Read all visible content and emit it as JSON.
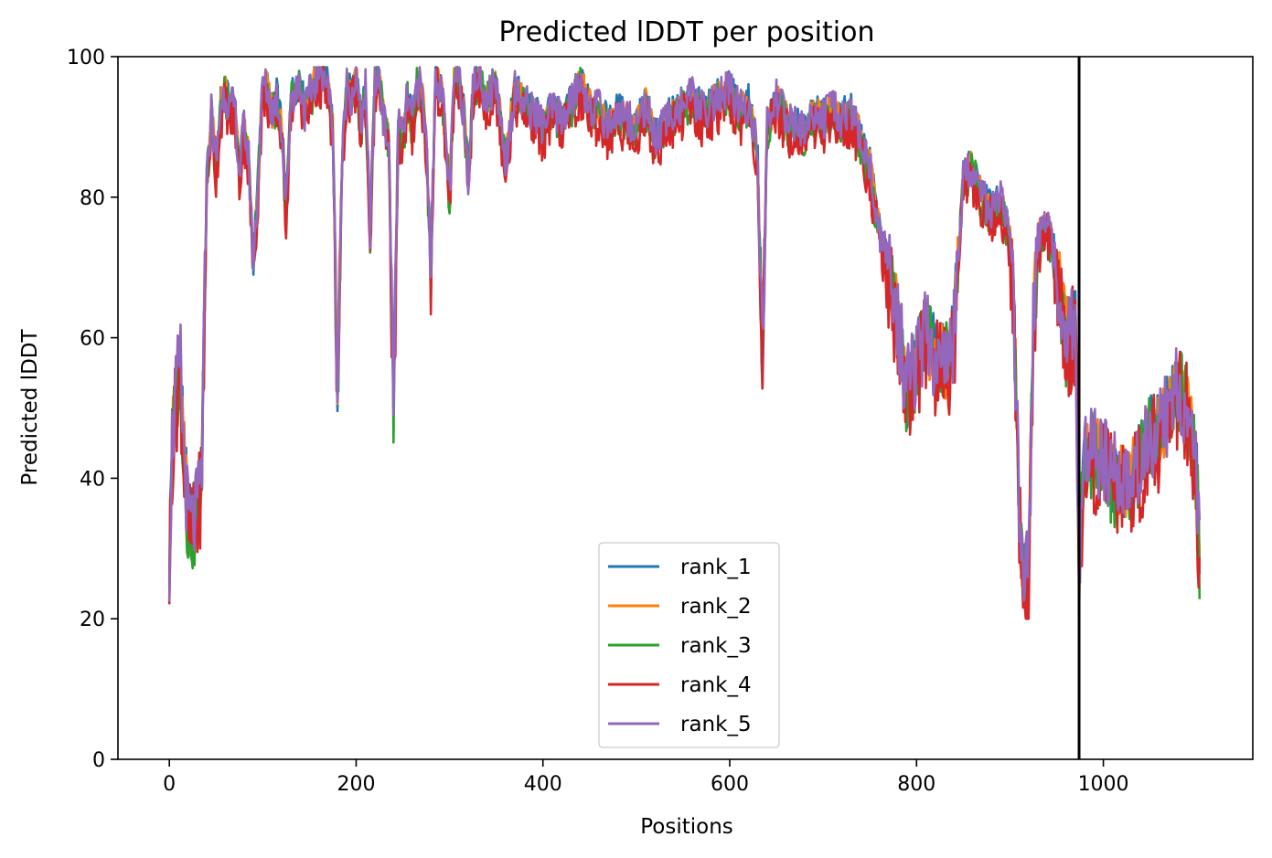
{
  "chart_data": {
    "type": "line",
    "title": "Predicted lDDT per position",
    "xlabel": "Positions",
    "ylabel": "Predicted lDDT",
    "xlim": [
      -55,
      1160
    ],
    "ylim": [
      0,
      100
    ],
    "xticks": [
      0,
      200,
      400,
      600,
      800,
      1000
    ],
    "yticks": [
      0,
      20,
      40,
      60,
      80,
      100
    ],
    "grid": false,
    "legend_position": "lower center",
    "vertical_line": {
      "x": 974,
      "color": "#000000"
    },
    "series": [
      {
        "name": "rank_1",
        "color": "#1f77b4",
        "offset": 0.6,
        "amp": 2.5
      },
      {
        "name": "rank_2",
        "color": "#ff7f0e",
        "offset": 0.2,
        "amp": 2.5
      },
      {
        "name": "rank_3",
        "color": "#2ca02c",
        "offset": -0.5,
        "amp": 3.0
      },
      {
        "name": "rank_4",
        "color": "#d62728",
        "offset": -1.5,
        "amp": 3.5
      },
      {
        "name": "rank_5",
        "color": "#9467bd",
        "offset": 0.3,
        "amp": 3.0
      }
    ],
    "base_profile": {
      "x": [
        0,
        3,
        8,
        12,
        15,
        20,
        25,
        30,
        35,
        40,
        45,
        50,
        55,
        60,
        65,
        70,
        75,
        80,
        85,
        90,
        95,
        100,
        105,
        110,
        115,
        120,
        125,
        130,
        135,
        140,
        145,
        150,
        155,
        160,
        165,
        170,
        175,
        180,
        185,
        190,
        195,
        200,
        205,
        210,
        215,
        220,
        225,
        230,
        235,
        240,
        245,
        250,
        255,
        260,
        265,
        270,
        275,
        280,
        285,
        290,
        295,
        300,
        305,
        310,
        315,
        320,
        325,
        330,
        340,
        350,
        360,
        370,
        380,
        390,
        400,
        410,
        420,
        430,
        440,
        450,
        460,
        470,
        480,
        490,
        500,
        510,
        520,
        530,
        540,
        550,
        560,
        570,
        580,
        590,
        600,
        610,
        620,
        625,
        630,
        635,
        640,
        650,
        660,
        670,
        680,
        690,
        700,
        710,
        720,
        730,
        740,
        750,
        760,
        770,
        780,
        790,
        800,
        810,
        820,
        830,
        840,
        850,
        860,
        870,
        880,
        890,
        900,
        905,
        910,
        915,
        920,
        925,
        930,
        940,
        950,
        960,
        970,
        974,
        980,
        990,
        1000,
        1010,
        1020,
        1030,
        1040,
        1050,
        1060,
        1070,
        1080,
        1090,
        1100,
        1103
      ],
      "y": [
        28,
        45,
        53,
        56,
        45,
        34,
        33,
        35,
        42,
        82,
        92,
        84,
        93,
        95,
        92,
        93,
        83,
        90,
        85,
        70,
        82,
        96,
        95,
        92,
        94,
        90,
        78,
        94,
        95,
        96,
        92,
        94,
        96,
        97,
        98,
        95,
        90,
        52,
        85,
        96,
        94,
        97,
        90,
        95,
        75,
        96,
        97,
        90,
        88,
        50,
        90,
        88,
        94,
        90,
        96,
        95,
        88,
        70,
        97,
        96,
        90,
        80,
        96,
        97,
        92,
        83,
        95,
        97,
        94,
        96,
        85,
        95,
        93,
        92,
        90,
        92,
        91,
        93,
        96,
        93,
        92,
        90,
        92,
        91,
        90,
        93,
        88,
        90,
        92,
        93,
        94,
        92,
        93,
        94,
        95,
        92,
        93,
        90,
        85,
        55,
        90,
        94,
        91,
        90,
        89,
        92,
        91,
        92,
        91,
        92,
        88,
        84,
        75,
        70,
        62,
        52,
        56,
        60,
        57,
        56,
        60,
        83,
        84,
        80,
        78,
        79,
        74,
        60,
        35,
        25,
        26,
        62,
        74,
        76,
        70,
        60,
        62,
        28,
        42,
        44,
        42,
        40,
        39,
        40,
        43,
        46,
        47,
        49,
        53,
        50,
        40,
        28
      ]
    }
  }
}
